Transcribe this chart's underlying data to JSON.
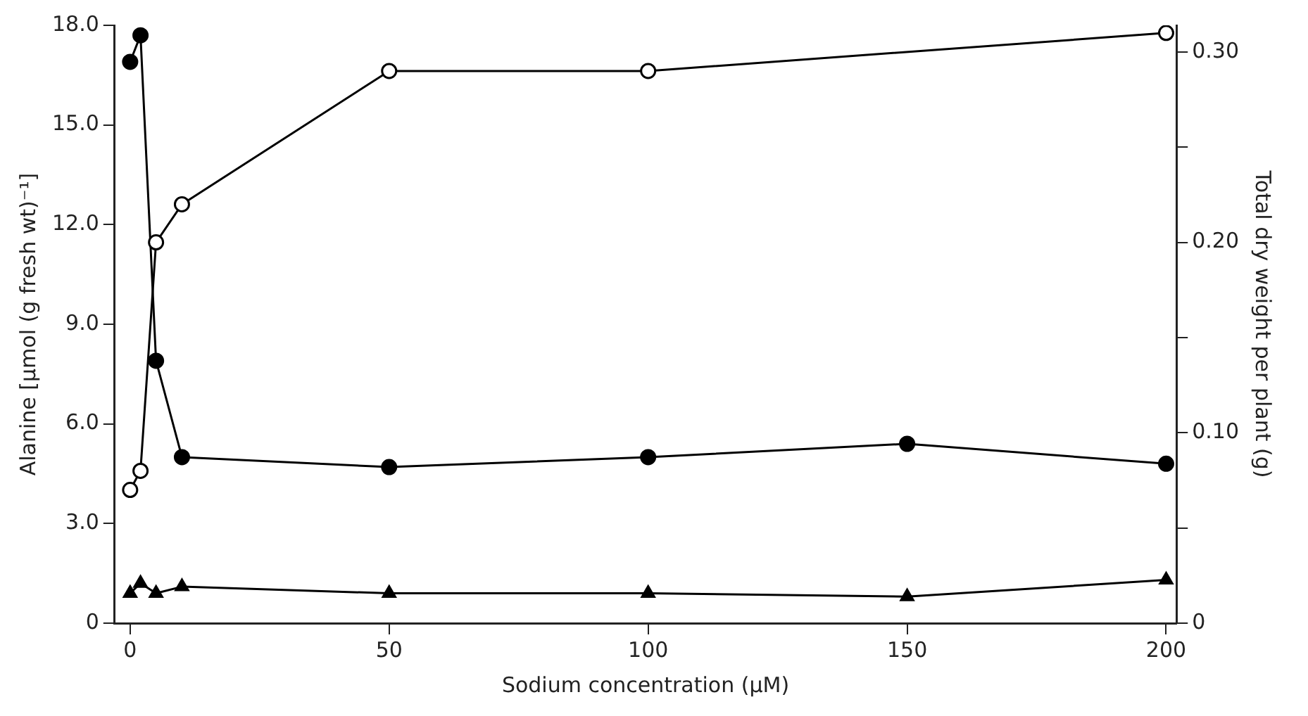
{
  "chart_data": {
    "type": "line",
    "xlabel": "Sodium concentration (µM)",
    "ylabel": "Alanine [µmol (g fresh wt)⁻¹]",
    "y2label": "Total dry weight per plant (g)",
    "x": [
      0,
      2,
      5,
      10,
      50,
      100,
      150,
      200
    ],
    "series": [
      {
        "color": "#000000",
        "marker": "circle",
        "axis": "y2",
        "values": [
          0.07,
          0.08,
          0.2,
          0.22,
          0.29,
          0.29,
          null,
          0.31
        ]
      },
      {
        "color": "#000000",
        "marker": "circle",
        "values": [
          16.9,
          17.7,
          7.9,
          5.0,
          4.7,
          5.0,
          5.4,
          4.8
        ]
      },
      {
        "color": "#000000",
        "marker": "triangle",
        "values": [
          0.9,
          1.2,
          0.9,
          1.1,
          0.9,
          0.9,
          0.8,
          1.3
        ]
      }
    ],
    "xlim": [
      -3,
      202
    ],
    "xticks": [
      0,
      50,
      100,
      150,
      200
    ],
    "ylim": [
      0,
      18
    ],
    "yticks": [
      0,
      {
        "value": 3,
        "label": "3.0"
      },
      {
        "value": 6,
        "label": "6.0"
      },
      {
        "value": 9,
        "label": "9.0"
      },
      {
        "value": 12,
        "label": "12.0"
      },
      {
        "value": 15,
        "label": "15.0"
      },
      {
        "value": 18,
        "label": "18.0"
      }
    ],
    "y2lim": [
      0,
      0.314
    ],
    "y2ticks": [
      0,
      {
        "value": 0.05,
        "label": null
      },
      {
        "value": 0.1,
        "label": "0.10"
      },
      {
        "value": 0.15,
        "label": null
      },
      {
        "value": 0.2,
        "label": "0.20"
      },
      {
        "value": 0.25,
        "label": null
      },
      {
        "value": 0.3,
        "label": "0.30"
      }
    ],
    "grid": false,
    "legend": false,
    "line_style": "solid"
  }
}
